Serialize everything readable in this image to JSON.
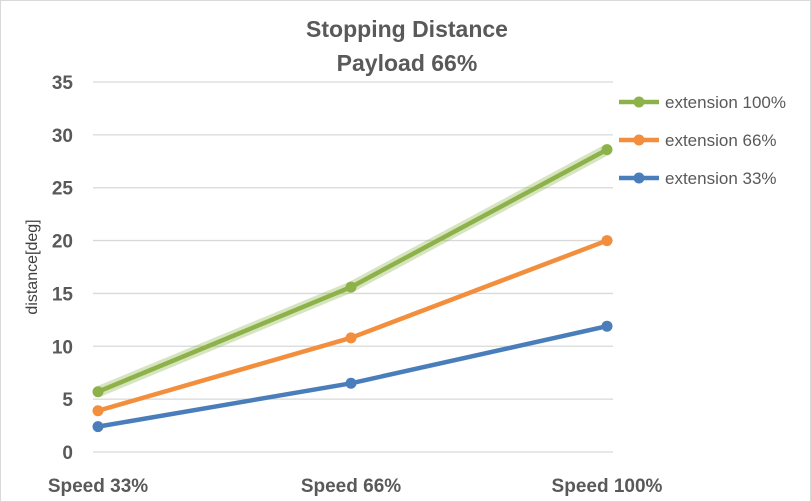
{
  "chart_data": {
    "type": "line",
    "title": "Stopping Distance",
    "subtitle": "Payload 66%",
    "xlabel": "",
    "ylabel": "distance[deg]",
    "categories": [
      "Speed 33%",
      "Speed 66%",
      "Speed 100%"
    ],
    "ylim": [
      0,
      35
    ],
    "yticks": [
      0,
      5,
      10,
      15,
      20,
      25,
      30,
      35
    ],
    "grid": true,
    "legend": "right",
    "series": [
      {
        "name": "extension 100%",
        "color": "#8db24a",
        "values": [
          5.7,
          15.6,
          28.6
        ]
      },
      {
        "name": "extension 66%",
        "color": "#f28e3c",
        "values": [
          3.9,
          10.8,
          20.0
        ]
      },
      {
        "name": "extension 33%",
        "color": "#4a7ebb",
        "values": [
          2.4,
          6.5,
          11.9
        ]
      }
    ]
  }
}
